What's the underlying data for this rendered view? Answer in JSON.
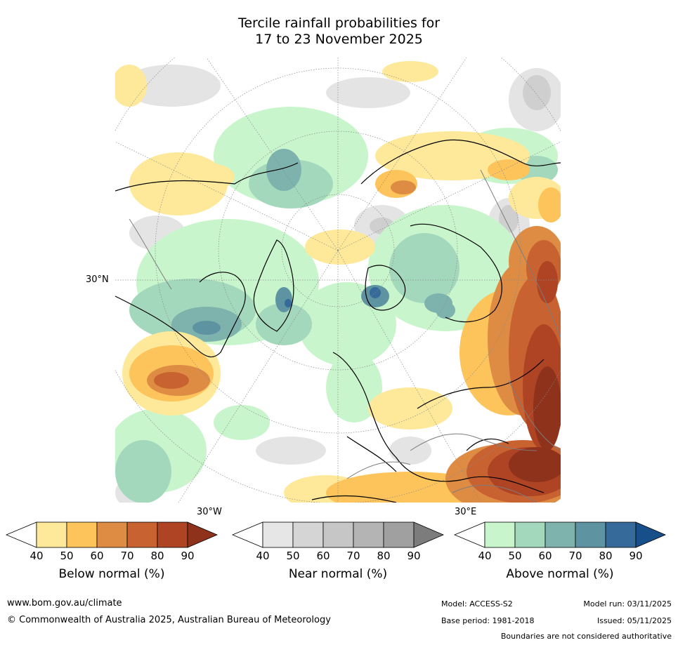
{
  "title_line1": "Tercile rainfall probabilities for",
  "title_line2": "17 to 23 November 2025",
  "map": {
    "lat_label": "30°N",
    "lon_label_left": "30°W",
    "lon_label_right": "30°E"
  },
  "colorbars": [
    {
      "label": "Below normal (%)",
      "ticks": [
        "40",
        "50",
        "60",
        "70",
        "80",
        "90"
      ],
      "colors": [
        "#ffffff",
        "#fee99a",
        "#fdc45c",
        "#de8c43",
        "#c86230",
        "#ae4424",
        "#8f321c"
      ]
    },
    {
      "label": "Near normal (%)",
      "ticks": [
        "40",
        "50",
        "60",
        "70",
        "80",
        "90"
      ],
      "colors": [
        "#ffffff",
        "#e6e6e6",
        "#d5d5d5",
        "#c6c6c6",
        "#b4b4b4",
        "#a0a0a0",
        "#7c7c7c"
      ]
    },
    {
      "label": "Above normal (%)",
      "ticks": [
        "40",
        "50",
        "60",
        "70",
        "80",
        "90"
      ],
      "colors": [
        "#ffffff",
        "#c8f5cc",
        "#a3d8bc",
        "#7eb3ad",
        "#5e94a2",
        "#356a9a",
        "#174f8a"
      ]
    }
  ],
  "footer": {
    "website": "www.bom.gov.au/climate",
    "copyright": "© Commonwealth of Australia 2025, Australian Bureau of Meteorology",
    "model": "Model: ACCESS-S2",
    "base_period": "Base period: 1981-2018",
    "model_run": "Model run: 03/11/2025",
    "issued": "Issued: 05/11/2025",
    "disclaimer": "Boundaries are not considered authoritative"
  }
}
